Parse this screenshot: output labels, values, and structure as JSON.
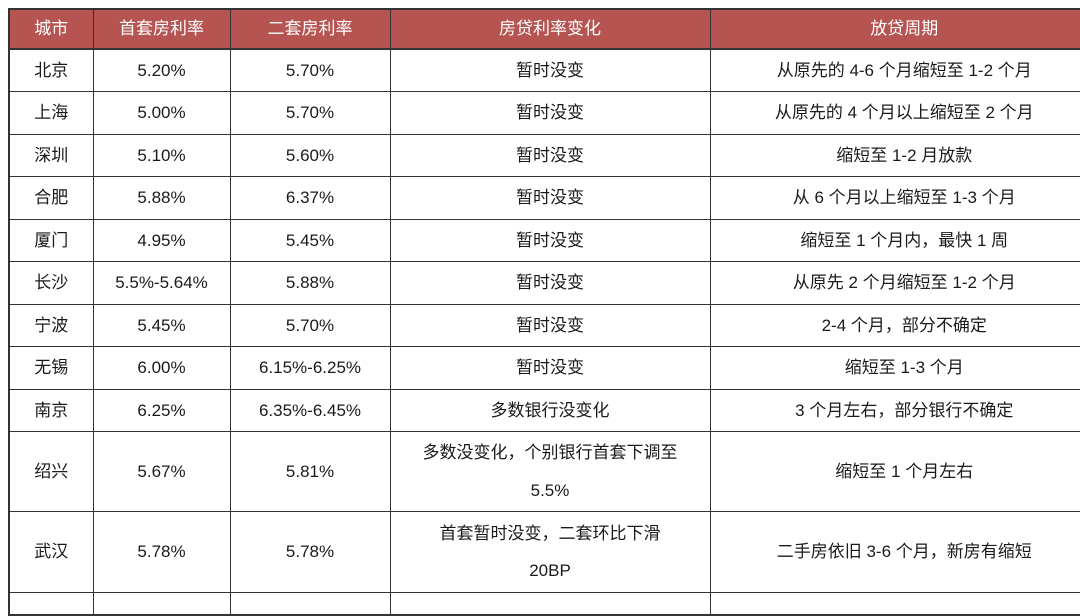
{
  "style": {
    "header_bg": "#b65452",
    "header_text": "#ffffff",
    "border_color": "#333333",
    "text_color": "#1a1a1a"
  },
  "chart_data": {
    "type": "table",
    "title": "",
    "columns": [
      "城市",
      "首套房利率",
      "二套房利率",
      "房贷利率变化",
      "放贷周期"
    ],
    "rows": [
      [
        "北京",
        "5.20%",
        "5.70%",
        "暂时没变",
        "从原先的 4-6 个月缩短至 1-2 个月"
      ],
      [
        "上海",
        "5.00%",
        "5.70%",
        "暂时没变",
        "从原先的 4 个月以上缩短至 2 个月"
      ],
      [
        "深圳",
        "5.10%",
        "5.60%",
        "暂时没变",
        "缩短至 1-2 月放款"
      ],
      [
        "合肥",
        "5.88%",
        "6.37%",
        "暂时没变",
        "从 6 个月以上缩短至 1-3 个月"
      ],
      [
        "厦门",
        "4.95%",
        "5.45%",
        "暂时没变",
        "缩短至 1 个月内，最快 1 周"
      ],
      [
        "长沙",
        "5.5%-5.64%",
        "5.88%",
        "暂时没变",
        "从原先 2 个月缩短至 1-2 个月"
      ],
      [
        "宁波",
        "5.45%",
        "5.70%",
        "暂时没变",
        "2-4 个月，部分不确定"
      ],
      [
        "无锡",
        "6.00%",
        "6.15%-6.25%",
        "暂时没变",
        "缩短至 1-3 个月"
      ],
      [
        "南京",
        "6.25%",
        "6.35%-6.45%",
        "多数银行没变化",
        "3 个月左右，部分银行不确定"
      ],
      [
        "绍兴",
        "5.67%",
        "5.81%",
        "多数没变化，个别银行首套下调至\n5.5%",
        "缩短至 1 个月左右"
      ],
      [
        "武汉",
        "5.78%",
        "5.78%",
        "首套暂时没变，二套环比下滑\n20BP",
        "二手房依旧 3-6 个月，新房有缩短"
      ]
    ],
    "layout": {
      "header_position": "top",
      "grid": true,
      "cut_off_right": true,
      "cut_off_bottom": true
    }
  }
}
